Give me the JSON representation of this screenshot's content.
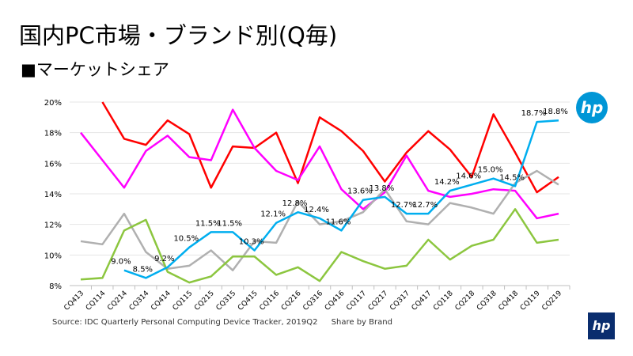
{
  "header": {
    "title": "国内PC市場・ブランド別(Q毎)",
    "subtitle": "■マーケットシェア"
  },
  "footer": {
    "source": "Source: IDC Quarterly Personal Computing Device Tracker, 2019Q2",
    "note": "Share by Brand"
  },
  "logos": {
    "top": "hp",
    "bottom": "hp",
    "brand_color": "#0096d6",
    "bottom_color": "#0a2d6e"
  },
  "chart_data": {
    "type": "line",
    "ylim": [
      8,
      20
    ],
    "yticks": [
      "8%",
      "10%",
      "12%",
      "14%",
      "16%",
      "18%",
      "20%"
    ],
    "ytick_values": [
      8,
      10,
      12,
      14,
      16,
      18,
      20
    ],
    "grid": true,
    "categories": [
      "CQ413",
      "CQ114",
      "CQ214",
      "CQ314",
      "CQ414",
      "CQ115",
      "CQ215",
      "CQ315",
      "CQ415",
      "CQ116",
      "CQ216",
      "CQ316",
      "CQ416",
      "CQ117",
      "CQ217",
      "CQ317",
      "CQ417",
      "CQ118",
      "CQ218",
      "CQ318",
      "CQ418",
      "CQ119",
      "CQ219"
    ],
    "series": [
      {
        "color": "#ff0000",
        "values": [
          null,
          20.0,
          17.6,
          17.2,
          18.8,
          17.9,
          14.4,
          17.1,
          17.0,
          18.0,
          14.7,
          19.0,
          18.1,
          16.8,
          14.8,
          16.7,
          18.1,
          16.9,
          15.1,
          19.2,
          16.7,
          14.1,
          15.1
        ]
      },
      {
        "color": "#ff00ff",
        "values": [
          18.0,
          16.2,
          14.4,
          16.8,
          17.8,
          16.4,
          16.2,
          19.5,
          17.0,
          15.5,
          14.9,
          17.1,
          14.3,
          13.0,
          14.1,
          16.5,
          14.2,
          13.8,
          14.0,
          14.3,
          14.2,
          12.4,
          12.7
        ]
      },
      {
        "color": "#b0b0b0",
        "values": [
          10.9,
          10.7,
          12.7,
          10.2,
          9.1,
          9.3,
          10.3,
          9.0,
          10.9,
          10.8,
          13.5,
          12.0,
          12.2,
          12.8,
          14.3,
          12.2,
          12.0,
          13.4,
          13.1,
          12.7,
          14.7,
          15.5,
          14.6
        ]
      },
      {
        "color": "#8cc63f",
        "values": [
          8.4,
          8.5,
          11.6,
          12.3,
          8.9,
          8.2,
          8.6,
          9.9,
          9.9,
          8.7,
          9.2,
          8.3,
          10.2,
          9.6,
          9.1,
          9.3,
          11.0,
          9.7,
          10.6,
          11.0,
          13.0,
          10.8,
          11.0
        ]
      },
      {
        "color": "#00aeef",
        "values": [
          null,
          null,
          9.0,
          8.5,
          9.2,
          10.5,
          11.5,
          11.5,
          10.3,
          12.1,
          12.8,
          12.4,
          11.6,
          13.6,
          13.8,
          12.7,
          12.7,
          14.2,
          14.6,
          15.0,
          14.5,
          18.7,
          18.8
        ],
        "labels": [
          null,
          null,
          "9.0%",
          "8.5%",
          "9.2%",
          "10.5%",
          "11.5%",
          "11.5%",
          "10.3%",
          "12.1%",
          "12.8%",
          "12.4%",
          "11.6%",
          "13.6%",
          "13.8%",
          "12.7%",
          "12.7%",
          "14.2%",
          "14.6%",
          "15.0%",
          "14.5%",
          "18.7%",
          "18.8%"
        ]
      }
    ]
  }
}
